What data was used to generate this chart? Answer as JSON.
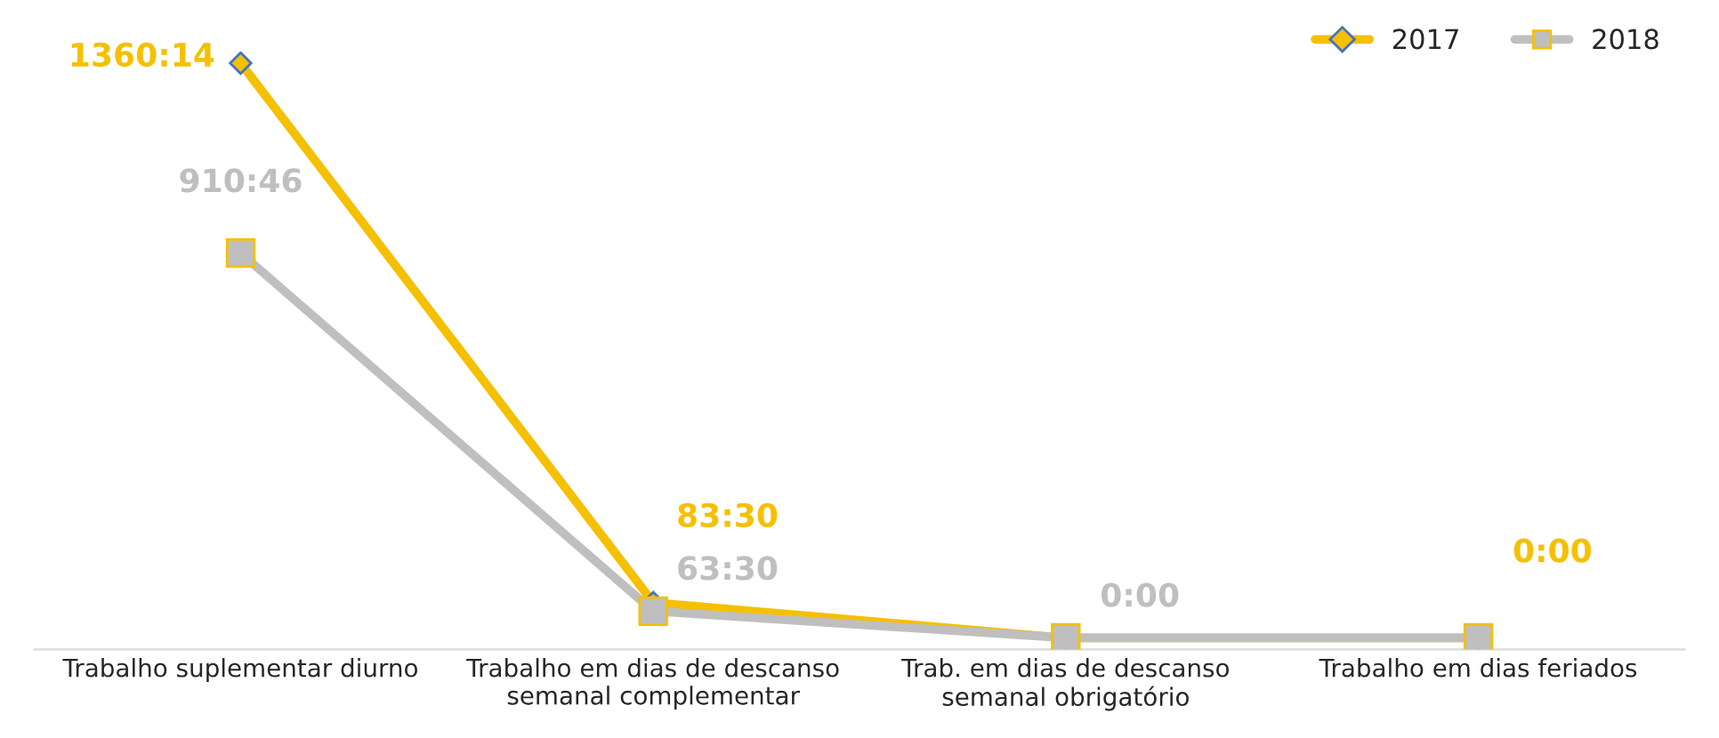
{
  "chart_data": {
    "type": "line",
    "categories": [
      "Trabalho suplementar diurno",
      "Trabalho em dias de descanso\nsemanal complementar",
      "Trab. em dias de descanso\nsemanal obrigatório",
      "Trabalho em dias feriados"
    ],
    "series": [
      {
        "name": "2017",
        "color": "#f5c000",
        "marker": "diamond",
        "values": [
          1360.23,
          83.5,
          0,
          0
        ],
        "value_labels": [
          "1360:14",
          "83:30",
          null,
          "0:00"
        ]
      },
      {
        "name": "2018",
        "color": "#bfbfbf",
        "marker": "square",
        "values": [
          910.77,
          63.5,
          0,
          0
        ],
        "value_labels": [
          "910:46",
          "63:30",
          "0:00",
          null
        ]
      }
    ],
    "legend": "top right",
    "grid": false
  }
}
